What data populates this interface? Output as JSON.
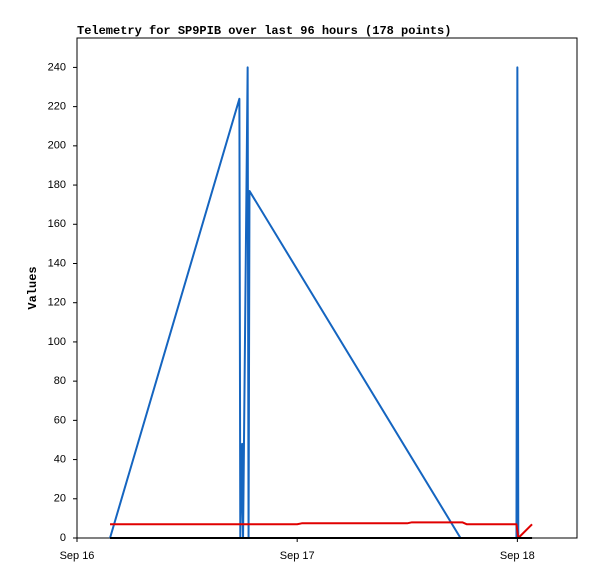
{
  "chart_data": {
    "type": "line",
    "title": "Telemetry for SP9PIB over last 96 hours (178 points)",
    "y_label": "Values",
    "xlim": [
      0,
      54.5
    ],
    "xticks": [
      {
        "value": 0,
        "label": "Sep 16"
      },
      {
        "value": 24,
        "label": "Sep 17"
      },
      {
        "value": 48,
        "label": "Sep 18"
      }
    ],
    "ylim": [
      0,
      255
    ],
    "yticks": [
      0,
      20,
      40,
      60,
      80,
      100,
      120,
      140,
      160,
      180,
      200,
      220,
      240
    ],
    "series": [
      {
        "color": "#1565c0",
        "x": [
          3.6,
          17.7,
          17.8,
          18.0,
          18.1,
          18.6,
          18.7,
          18.8,
          41.8,
          47.9,
          48.0,
          48.1
        ],
        "values": [
          0,
          224,
          0,
          48,
          0,
          240,
          0,
          177,
          0,
          0,
          240,
          0
        ]
      },
      {
        "color": "#e00000",
        "x": [
          3.6,
          24.0,
          24.5,
          36.0,
          36.5,
          42.0,
          42.5,
          47.9,
          48.1,
          49.6
        ],
        "values": [
          7,
          7,
          7.5,
          7.5,
          8,
          8,
          7,
          7,
          0,
          7
        ]
      },
      {
        "color": "#000000",
        "x": [
          3.6,
          49.6
        ],
        "values": [
          0,
          0
        ]
      }
    ]
  }
}
